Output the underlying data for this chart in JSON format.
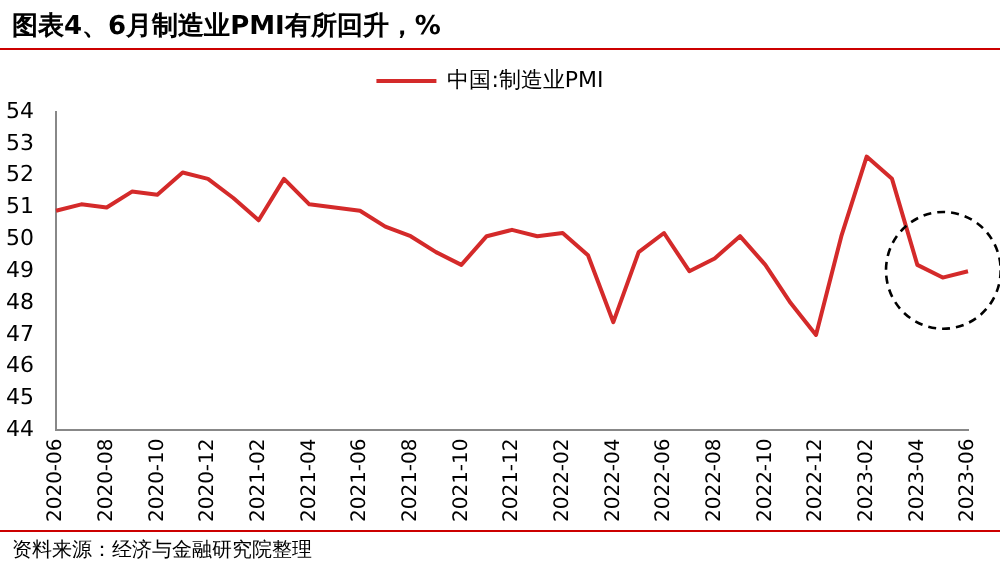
{
  "chart_data": {
    "type": "line",
    "title": "图表4、6月制造业PMI有所回升，%",
    "categories": [
      "2020-06",
      null,
      "2020-08",
      null,
      "2020-10",
      null,
      "2020-12",
      null,
      "2021-02",
      null,
      "2021-04",
      null,
      "2021-06",
      null,
      "2021-08",
      null,
      "2021-10",
      null,
      "2021-12",
      null,
      "2022-02",
      null,
      "2022-04",
      null,
      "2022-06",
      null,
      "2022-08",
      null,
      "2022-10",
      null,
      "2022-12",
      null,
      "2023-02",
      null,
      "2023-04",
      null,
      "2023-06"
    ],
    "series": [
      {
        "name": "中国:制造业PMI",
        "color": "#d42a2a",
        "values": [
          50.9,
          51.1,
          51.0,
          51.5,
          51.4,
          52.1,
          51.9,
          51.3,
          50.6,
          51.9,
          51.1,
          51.0,
          50.9,
          50.4,
          50.1,
          49.6,
          49.2,
          50.1,
          50.3,
          50.1,
          50.2,
          49.5,
          47.4,
          49.6,
          50.2,
          49.0,
          49.4,
          50.1,
          49.2,
          48.0,
          47.0,
          50.1,
          52.6,
          51.9,
          49.2,
          48.8,
          49.0
        ]
      }
    ],
    "ylim": [
      44,
      54
    ],
    "yticks": [
      44,
      45,
      46,
      47,
      48,
      49,
      50,
      51,
      52,
      53,
      54
    ],
    "grid": false,
    "legend": "top",
    "marker": "none",
    "line_style": "solid",
    "annotations": [
      "资料来源：经济与金融研究院整理"
    ]
  }
}
